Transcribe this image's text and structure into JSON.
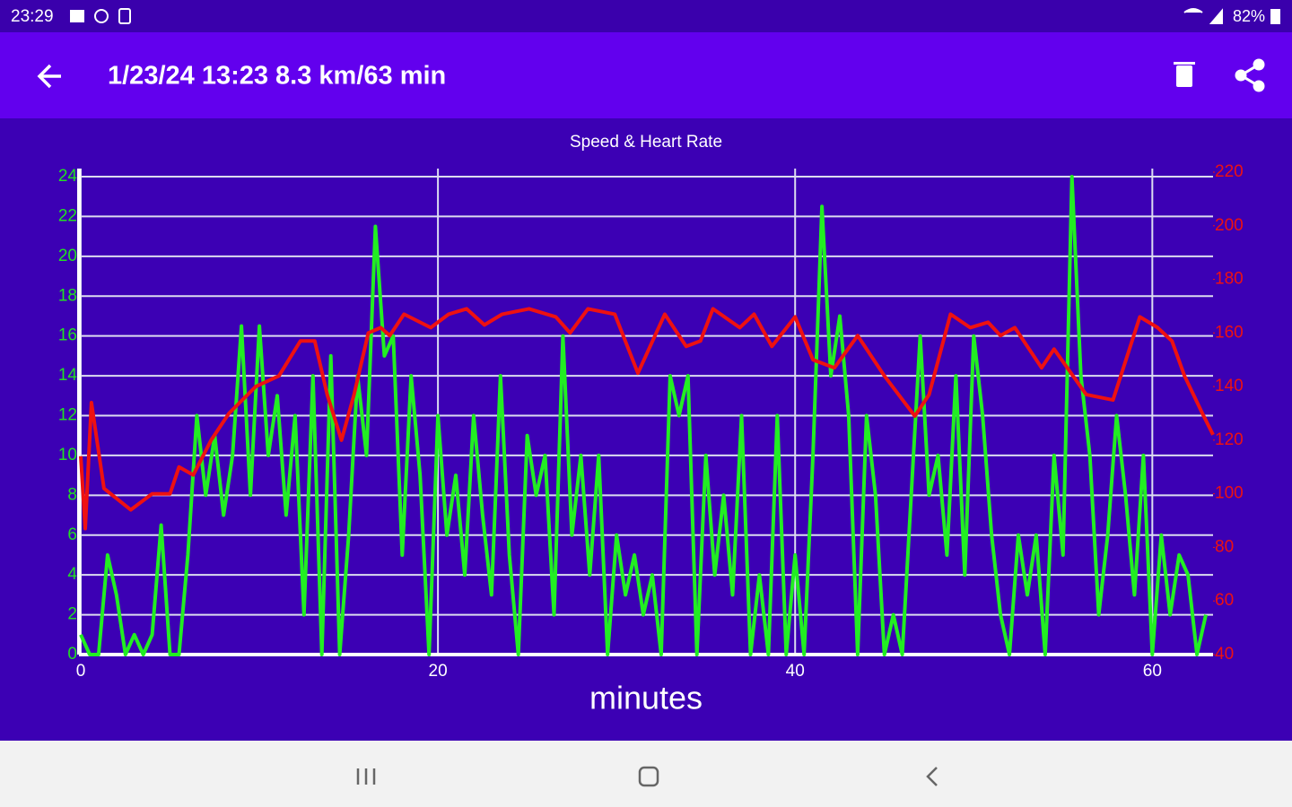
{
  "status_bar": {
    "time": "23:29",
    "battery": "82%"
  },
  "app_bar": {
    "title": "1/23/24 13:23 8.3 km/63 min"
  },
  "chart_data": {
    "type": "line",
    "title": "Speed & Heart Rate",
    "x_label": "minutes",
    "xlim": [
      0,
      63.4
    ],
    "xticks": [
      0,
      20,
      40,
      60
    ],
    "ylim": [
      0,
      24
    ],
    "yticks": [
      0,
      2,
      4,
      6,
      8,
      10,
      12,
      14,
      16,
      18,
      20,
      22,
      24
    ],
    "y2lim": [
      40,
      220
    ],
    "y2ticks": [
      40,
      60,
      80,
      100,
      120,
      140,
      160,
      180,
      200,
      220
    ],
    "grid": true,
    "ytick_color": "#22e022",
    "y2tick_color": "#ee1111",
    "series": [
      {
        "color": "#22ee22",
        "x": [
          0,
          0.5,
          1,
          1.5,
          2,
          2.5,
          3,
          3.5,
          4,
          4.5,
          5,
          5.5,
          6,
          6.5,
          7,
          7.5,
          8,
          8.5,
          9,
          9.5,
          10,
          10.5,
          11,
          11.5,
          12,
          12.5,
          13,
          13.5,
          14,
          14.5,
          15,
          15.5,
          16,
          16.5,
          17,
          17.5,
          18,
          18.5,
          19,
          19.5,
          20,
          20.5,
          21,
          21.5,
          22,
          22.5,
          23,
          23.5,
          24,
          24.5,
          25,
          25.5,
          26,
          26.5,
          27,
          27.5,
          28,
          28.5,
          29,
          29.5,
          30,
          30.5,
          31,
          31.5,
          32,
          32.5,
          33,
          33.5,
          34,
          34.5,
          35,
          35.5,
          36,
          36.5,
          37,
          37.5,
          38,
          38.5,
          39,
          39.5,
          40,
          40.5,
          41,
          41.5,
          42,
          42.5,
          43,
          43.5,
          44,
          44.5,
          45,
          45.5,
          46,
          46.5,
          47,
          47.5,
          48,
          48.5,
          49,
          49.5,
          50,
          50.5,
          51,
          51.5,
          52,
          52.5,
          53,
          53.5,
          54,
          54.5,
          55,
          55.5,
          56,
          56.5,
          57,
          57.5,
          58,
          58.5,
          59,
          59.5,
          60,
          60.5,
          61,
          61.5,
          62,
          62.5,
          63
        ],
        "values": [
          1,
          0,
          0,
          5,
          3,
          0,
          1,
          0,
          1,
          6.5,
          0,
          0,
          5,
          12,
          8,
          11,
          7,
          10,
          16.5,
          8,
          16.5,
          10,
          13,
          7,
          12,
          2,
          14,
          0,
          15,
          0,
          6,
          14,
          10,
          21.5,
          15,
          16,
          5,
          14,
          9,
          0,
          12,
          6,
          9,
          4,
          12,
          7,
          3,
          14,
          5,
          0,
          11,
          8,
          10,
          2,
          16,
          6,
          10,
          4,
          10,
          0,
          6,
          3,
          5,
          2,
          4,
          0,
          14,
          12,
          14,
          0,
          10,
          4,
          8,
          3,
          12,
          0,
          4,
          0,
          12,
          0,
          5,
          0,
          10,
          22.5,
          14,
          17,
          12,
          0,
          12,
          8,
          0,
          2,
          0,
          8,
          16,
          8,
          10,
          5,
          14,
          4,
          16,
          12,
          6,
          2,
          0,
          6,
          3,
          6,
          0,
          10,
          5,
          24,
          14,
          10,
          2,
          6,
          12,
          8,
          3,
          10,
          0,
          6,
          2,
          5,
          4,
          0,
          2
        ]
      },
      {
        "color": "#ee1111",
        "axis": "y2",
        "x": [
          0,
          0.25,
          0.6,
          1.3,
          2.8,
          4.0,
          5.0,
          5.5,
          6.3,
          7.3,
          8.3,
          9.8,
          11.1,
          12.3,
          13.1,
          13.8,
          14.6,
          15.3,
          16.1,
          16.8,
          17.3,
          18.1,
          19.6,
          20.6,
          21.6,
          22.6,
          23.6,
          25.1,
          26.6,
          27.4,
          28.4,
          29.9,
          31.2,
          32.7,
          33.9,
          34.7,
          35.4,
          36.9,
          37.7,
          38.7,
          40.0,
          41.0,
          42.2,
          43.5,
          45.0,
          46.7,
          47.5,
          48.7,
          49.8,
          50.8,
          51.5,
          52.3,
          53.8,
          54.5,
          56.3,
          57.8,
          59.3,
          60.3,
          61.1,
          61.8,
          62.8,
          63.4
        ],
        "values": [
          114,
          87,
          134,
          102,
          94,
          100,
          100,
          110,
          107,
          120,
          130,
          140,
          144,
          157,
          157,
          137,
          120,
          137,
          160,
          162,
          159,
          167,
          162,
          167,
          169,
          163,
          167,
          169,
          166,
          160,
          169,
          167,
          145,
          167,
          155,
          157,
          169,
          162,
          167,
          155,
          166,
          150,
          147,
          159,
          144,
          129,
          137,
          167,
          162,
          164,
          159,
          162,
          147,
          154,
          137,
          135,
          166,
          162,
          157,
          144,
          130,
          122
        ]
      }
    ]
  }
}
